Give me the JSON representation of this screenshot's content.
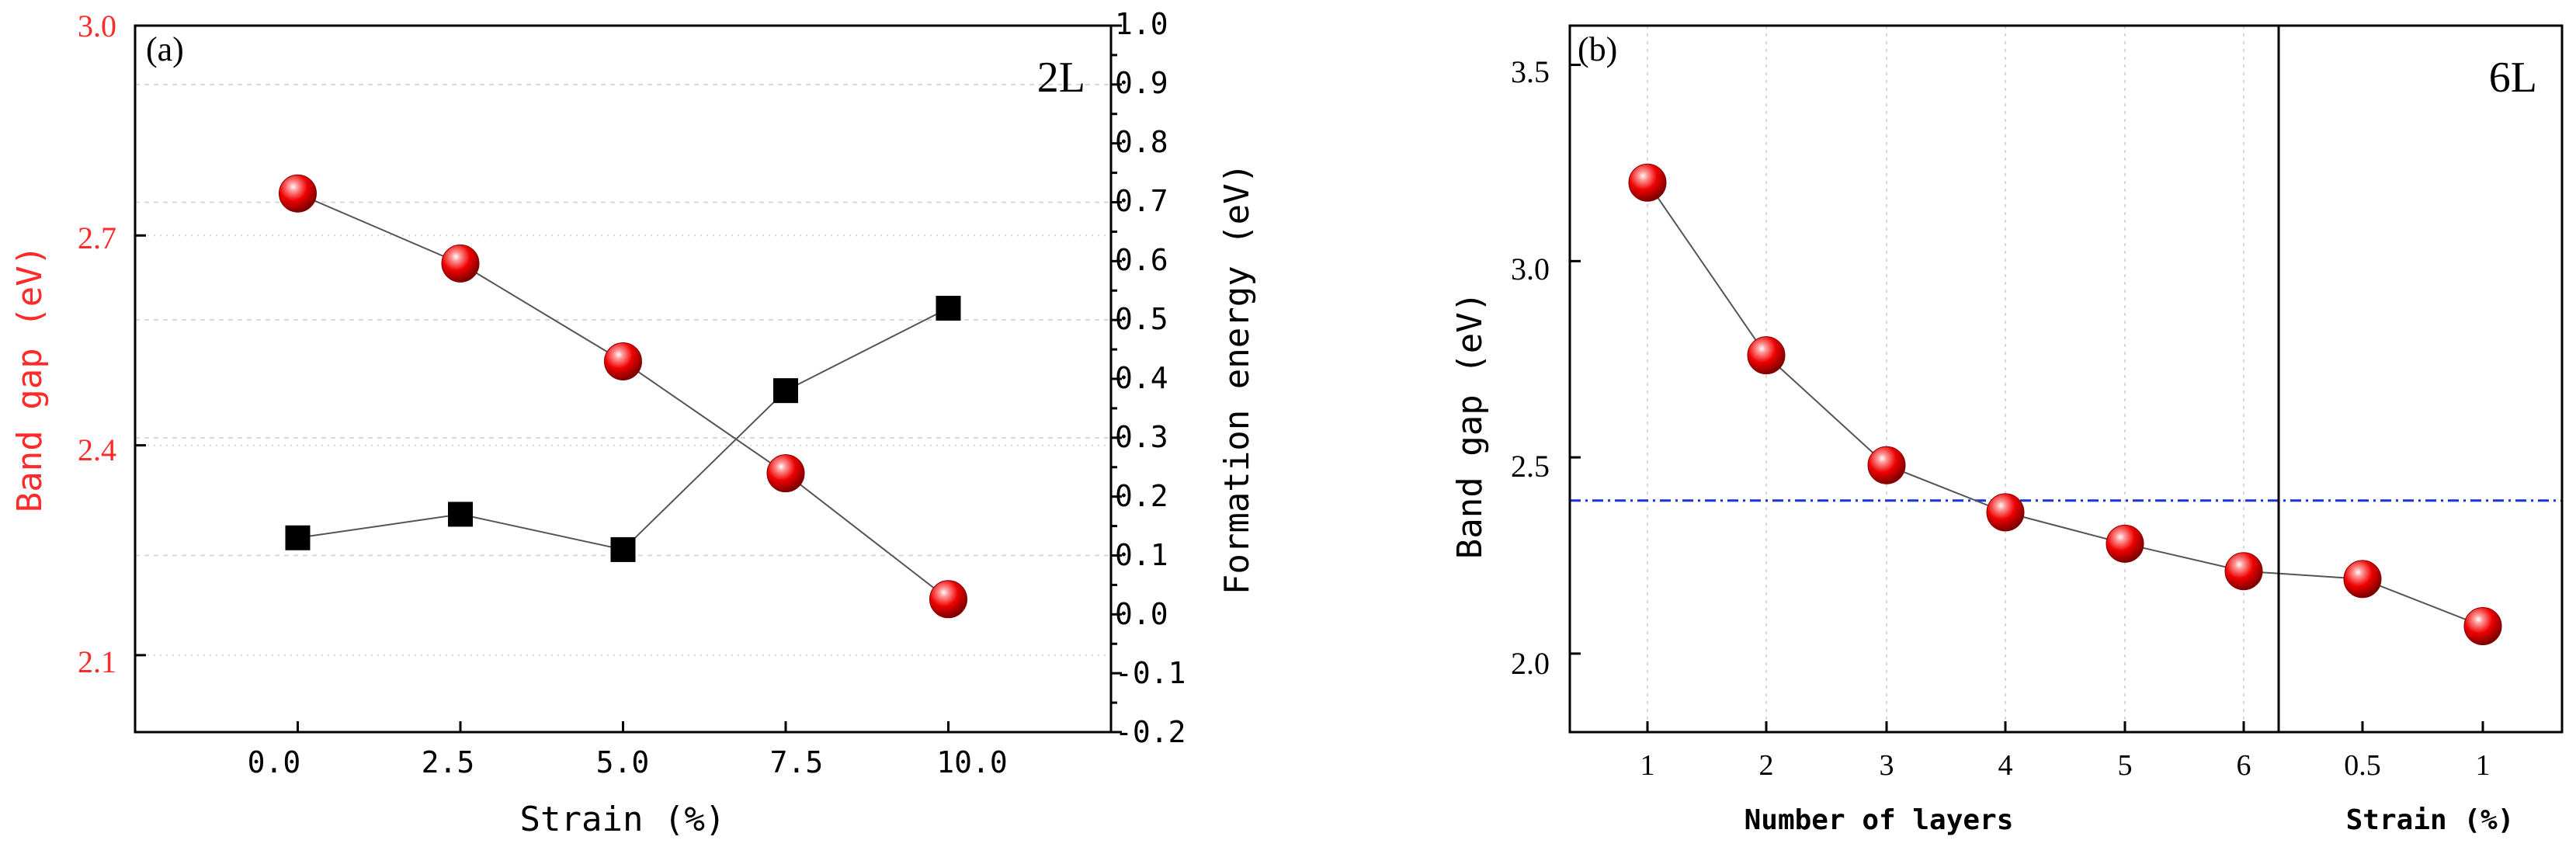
{
  "colors": {
    "red_axis": "#ff2a2a",
    "marker_red": "#ee0000",
    "marker_black": "#000000",
    "connector": "#555555",
    "guide_blue": "#1a33e0",
    "grid": "#d8d8d8"
  },
  "chart_data": [
    {
      "panel": "(a)",
      "type": "line",
      "tag": "2L",
      "xlabel": "Strain (%)",
      "ylabel_left": "Band gap (eV)",
      "ylabel_right": "Formation energy (eV)",
      "x_ticks": [
        "0.0",
        "2.5",
        "5.0",
        "7.5",
        "10.0"
      ],
      "y_left_ticks": [
        "2.1",
        "2.4",
        "2.7",
        "3.0"
      ],
      "y_right_ticks": [
        "-0.2",
        "-0.1",
        "0.0",
        "0.1",
        "0.2",
        "0.3",
        "0.4",
        "0.5",
        "0.6",
        "0.7",
        "0.8",
        "0.9",
        "1.0"
      ],
      "xlim": [
        -2.5,
        12.5
      ],
      "ylim_left": [
        1.99,
        3.0
      ],
      "ylim_right": [
        -0.2,
        1.0
      ],
      "series": [
        {
          "name": "Band gap",
          "axis": "left",
          "marker": "red-sphere",
          "x": [
            0,
            2.5,
            5,
            7.5,
            10
          ],
          "values": [
            2.76,
            2.66,
            2.52,
            2.36,
            2.18
          ]
        },
        {
          "name": "Formation energy",
          "axis": "right",
          "marker": "black-square",
          "x": [
            0,
            2.5,
            5,
            7.5,
            10
          ],
          "values": [
            0.13,
            0.17,
            0.11,
            0.38,
            0.52
          ]
        }
      ]
    },
    {
      "panel": "(b)",
      "type": "line",
      "tag": "6L",
      "xlabel_left": "Number of layers",
      "xlabel_right": "Strain (%)",
      "ylabel": "Band gap (eV)",
      "x_ticks": [
        "1",
        "2",
        "3",
        "4",
        "5",
        "6",
        "0.5",
        "1"
      ],
      "y_ticks": [
        "2.0",
        "2.5",
        "3.0",
        "3.5"
      ],
      "ylim": [
        1.8,
        3.6
      ],
      "reference_line": 2.39,
      "series": [
        {
          "name": "Band gap",
          "marker": "red-sphere",
          "x": [
            "1",
            "2",
            "3",
            "4",
            "5",
            "6",
            "0.5",
            "1"
          ],
          "values": [
            3.2,
            2.76,
            2.48,
            2.36,
            2.28,
            2.21,
            2.19,
            2.07
          ]
        }
      ]
    }
  ]
}
